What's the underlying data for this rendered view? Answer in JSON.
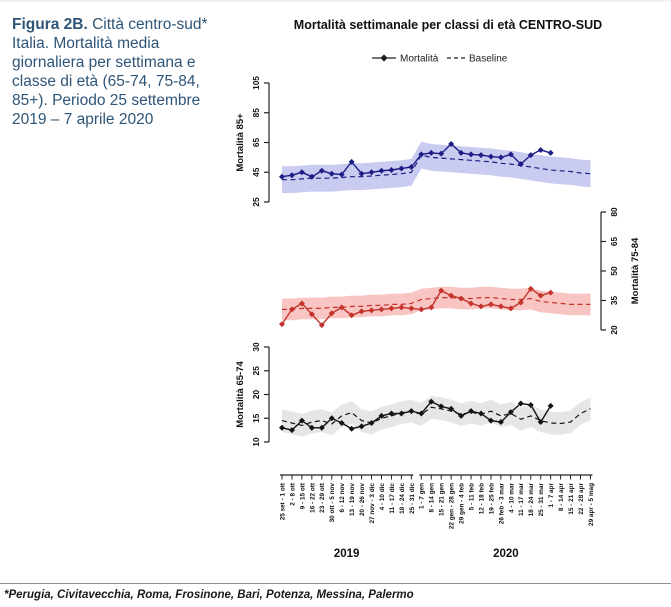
{
  "figure": {
    "caption_bold": "Figura 2B.",
    "caption_rest": " Città centro-sud* Italia. Mortalità media giornaliera per settimana e classe di età (65-74, 75-84, 85+). Periodo 25 settembre 2019 – 7 aprile 2020",
    "footnote": "*Perugia, Civitavecchia, Roma, Frosinone, Bari, Potenza, Messina, Palermo"
  },
  "chart_data": {
    "type": "line",
    "title": "Mortalità settimanale per classi di età CENTRO-SUD",
    "legend": [
      {
        "name": "Mortalità",
        "style": "solid-diamond"
      },
      {
        "name": "Baseline",
        "style": "dashed"
      }
    ],
    "grid": false,
    "x_tick_labels": [
      "25 set - 1 ott",
      "2 - 8 ott",
      "9 - 15 ott",
      "16 - 22 ott",
      "23 - 29 ott",
      "30 ott - 5 nov",
      "6 - 12 nov",
      "13 - 19 nov",
      "20 - 26 nov",
      "27 nov - 3 dic",
      "4 - 10 dic",
      "11 - 17 dic",
      "18 - 24 dic",
      "25 - 31 dic",
      "1 - 7 gen",
      "8 - 14 gen",
      "15 - 21 gen",
      "22 gen - 28 gen",
      "29 gen - 4 feb",
      "5 - 11 feb",
      "12 - 18 feb",
      "19 - 25 feb",
      "26 feb - 3 mar",
      "4 - 10 mar",
      "11 - 17 mar",
      "18 - 24 mar",
      "25 - 31 mar",
      "1 - 7 apr",
      "8 - 14 apr",
      "15 - 21 apr",
      "22 - 28 apr",
      "29 apr - 5 mag"
    ],
    "year_groups": [
      {
        "label": "2019",
        "weeks": 14
      },
      {
        "label": "2020",
        "weeks": 18
      }
    ],
    "panels": [
      {
        "id": "85plus",
        "ylabel": "Mortalità 85+",
        "axis_side": "left",
        "ylim": [
          25,
          105
        ],
        "yticks": [
          25,
          45,
          65,
          85,
          105
        ],
        "line_color": "#1d1d86",
        "band_color": "#c9cbf0",
        "band_halfwidth": 9,
        "mortalita": [
          42,
          43,
          45,
          42,
          46,
          44,
          43.5,
          52,
          44,
          45,
          46,
          46.5,
          47.5,
          48.5,
          57,
          58,
          57.5,
          64,
          58,
          57,
          56.5,
          55.5,
          55,
          57,
          50.5,
          56.5,
          60,
          58
        ],
        "baseline": [
          40,
          40,
          40.5,
          41,
          41,
          41,
          41.5,
          42,
          42,
          42.5,
          43,
          43.5,
          44,
          45,
          56.5,
          55,
          54.5,
          54,
          53.5,
          53,
          52.5,
          52,
          51,
          50.5,
          49.5,
          48.5,
          47.5,
          46.5,
          46,
          45.5,
          44.5,
          44
        ]
      },
      {
        "id": "7584",
        "ylabel": "Mortalità 75-84",
        "axis_side": "right",
        "ylim": [
          20,
          80
        ],
        "yticks": [
          20,
          35,
          50,
          65,
          80
        ],
        "line_color": "#c4332c",
        "band_color": "#f8c5c3",
        "band_halfwidth": 5.5,
        "mortalita": [
          23,
          30.5,
          33.5,
          28,
          22.5,
          28.5,
          31.5,
          27.5,
          29.5,
          30,
          30.5,
          31,
          31.5,
          31,
          30.5,
          31.5,
          40,
          37.5,
          36,
          33.5,
          32,
          33,
          32,
          31,
          34,
          41,
          37.5,
          39
        ],
        "baseline": [
          30.5,
          30.5,
          31,
          31,
          31,
          31.5,
          31.5,
          32,
          32,
          32.5,
          32.5,
          33,
          33,
          33.5,
          35.5,
          36,
          36.5,
          36.5,
          36,
          36,
          36.5,
          36.5,
          36,
          35.5,
          35.5,
          36,
          34.5,
          34,
          33.5,
          33,
          33,
          33
        ]
      },
      {
        "id": "6574",
        "ylabel": "Mortalità 65-74",
        "axis_side": "left",
        "ylim": [
          10,
          30
        ],
        "yticks": [
          10,
          15,
          20,
          25,
          30
        ],
        "line_color": "#141414",
        "band_color": "#e6e6e6",
        "band_halfwidth": 2.4,
        "mortalita": [
          13,
          12.5,
          14.5,
          13,
          13,
          15,
          14,
          12.8,
          13.3,
          14,
          15.5,
          16,
          16,
          16.5,
          16,
          18.5,
          17.5,
          17,
          15.5,
          16.5,
          16,
          14.5,
          14.2,
          16.3,
          18.1,
          17.8,
          14.2,
          17.6
        ],
        "baseline": [
          14.5,
          14,
          13.5,
          14.2,
          14.5,
          13.8,
          15.5,
          16.2,
          14.5,
          14,
          15,
          15.5,
          16.2,
          16.5,
          15.8,
          17.3,
          17,
          16.5,
          15.8,
          16.3,
          15.8,
          16.5,
          15.5,
          16,
          14.8,
          15.5,
          14.5,
          14,
          13.9,
          14.2,
          16,
          17
        ]
      }
    ]
  }
}
